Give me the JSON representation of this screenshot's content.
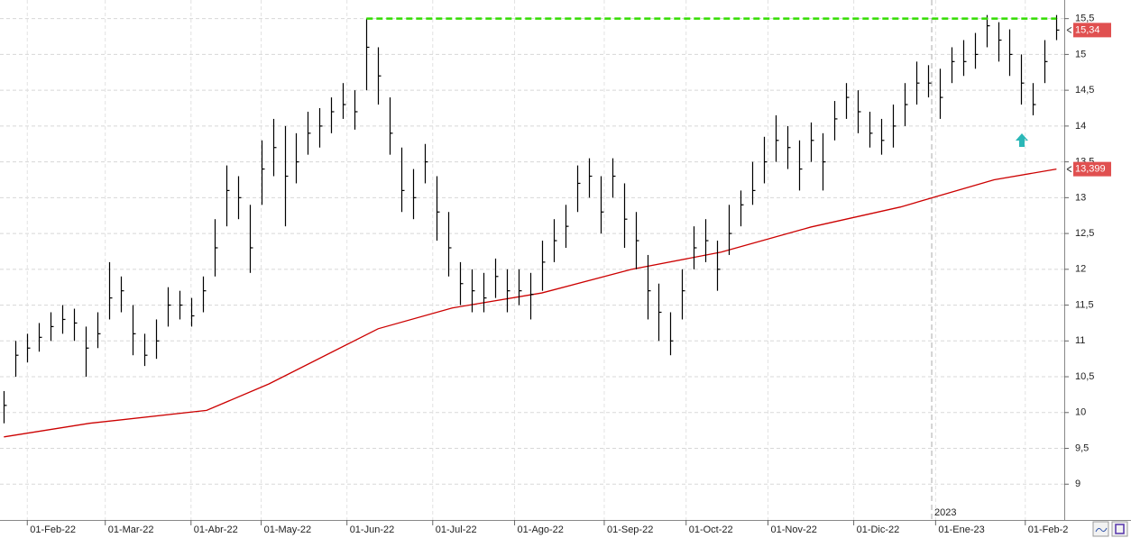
{
  "chart_data": {
    "type": "hlc",
    "xlim": [
      -1,
      272
    ],
    "ylim": [
      8.5,
      15.76
    ],
    "yticks": [
      9,
      {
        "value": 9.5,
        "label": "9,5"
      },
      10,
      {
        "value": 10.5,
        "label": "10,5"
      },
      11,
      {
        "value": 11.5,
        "label": "11,5"
      },
      12,
      {
        "value": 12.5,
        "label": "12,5"
      },
      13,
      {
        "value": 13.5,
        "label": "13,5"
      },
      14,
      {
        "value": 14.5,
        "label": "14,5"
      },
      15,
      {
        "value": 15.5,
        "label": "15,5"
      }
    ],
    "xticks": [
      {
        "value": 6,
        "label": "01-Feb-22"
      },
      {
        "value": 26,
        "label": "01-Mar-22"
      },
      {
        "value": 48,
        "label": "01-Abr-22"
      },
      {
        "value": 66,
        "label": "01-May-22"
      },
      {
        "value": 88,
        "label": "01-Jun-22"
      },
      {
        "value": 110,
        "label": "01-Jul-22"
      },
      {
        "value": 131,
        "label": "01-Ago-22"
      },
      {
        "value": 154,
        "label": "01-Sep-22"
      },
      {
        "value": 175,
        "label": "01-Oct-22"
      },
      {
        "value": 196,
        "label": "01-Nov-22"
      },
      {
        "value": 218,
        "label": "01-Dic-22"
      },
      {
        "value": 239,
        "label": "01-Ene-23"
      },
      {
        "value": 262,
        "label": "01-Feb-2"
      }
    ],
    "grid": true,
    "bar_color": "#000000",
    "bars": {
      "x": [
        0,
        3,
        6,
        9,
        12,
        15,
        18,
        21,
        24,
        27,
        30,
        33,
        36,
        39,
        42,
        45,
        48,
        51,
        54,
        57,
        60,
        63,
        66,
        69,
        72,
        75,
        78,
        81,
        84,
        87,
        90,
        93,
        96,
        99,
        102,
        105,
        108,
        111,
        114,
        117,
        120,
        123,
        126,
        129,
        132,
        135,
        138,
        141,
        144,
        147,
        150,
        153,
        156,
        159,
        162,
        165,
        168,
        171,
        174,
        177,
        180,
        183,
        186,
        189,
        192,
        195,
        198,
        201,
        204,
        207,
        210,
        213,
        216,
        219,
        222,
        225,
        228,
        231,
        234,
        237,
        240,
        243,
        246,
        249,
        252,
        255,
        258,
        261,
        264,
        267,
        270
      ],
      "high": [
        10.3,
        11.0,
        11.1,
        11.25,
        11.4,
        11.5,
        11.45,
        11.2,
        11.4,
        12.1,
        11.9,
        11.5,
        11.1,
        11.3,
        11.75,
        11.7,
        11.6,
        11.9,
        12.7,
        13.45,
        13.3,
        12.9,
        13.8,
        14.1,
        14.0,
        13.9,
        14.2,
        14.25,
        14.4,
        14.6,
        14.5,
        15.5,
        15.1,
        14.4,
        13.7,
        13.4,
        13.75,
        13.3,
        12.8,
        12.1,
        12.0,
        11.95,
        12.15,
        12.0,
        12.0,
        11.95,
        12.4,
        12.7,
        12.9,
        13.45,
        13.55,
        13.3,
        13.55,
        13.2,
        12.8,
        12.2,
        11.8,
        11.4,
        12.0,
        12.6,
        12.7,
        12.4,
        12.9,
        13.1,
        13.5,
        13.85,
        14.15,
        14.0,
        13.8,
        14.05,
        13.9,
        14.35,
        14.6,
        14.5,
        14.2,
        14.1,
        14.3,
        14.6,
        14.9,
        14.85,
        14.8,
        15.1,
        15.2,
        15.3,
        15.55,
        15.45,
        15.35,
        15.0,
        14.6,
        15.2,
        15.55
      ],
      "low": [
        9.85,
        10.5,
        10.7,
        10.85,
        11.0,
        11.1,
        11.0,
        10.5,
        10.9,
        11.3,
        11.4,
        10.8,
        10.65,
        10.75,
        11.2,
        11.3,
        11.2,
        11.4,
        11.9,
        12.6,
        12.7,
        11.95,
        12.9,
        13.3,
        12.6,
        13.2,
        13.6,
        13.7,
        13.9,
        14.1,
        13.95,
        14.5,
        14.3,
        13.6,
        12.8,
        12.7,
        13.2,
        12.4,
        11.9,
        11.5,
        11.4,
        11.4,
        11.6,
        11.4,
        11.5,
        11.3,
        11.7,
        12.1,
        12.3,
        12.8,
        13.0,
        12.5,
        13.0,
        12.3,
        12.0,
        11.3,
        11.0,
        10.8,
        11.3,
        12.0,
        12.1,
        11.7,
        12.2,
        12.6,
        12.9,
        13.2,
        13.5,
        13.4,
        13.1,
        13.5,
        13.1,
        13.8,
        14.1,
        13.9,
        13.7,
        13.6,
        13.7,
        14.0,
        14.3,
        14.4,
        14.1,
        14.6,
        14.7,
        14.8,
        15.1,
        14.9,
        14.7,
        14.3,
        14.15,
        14.6,
        15.2
      ],
      "close": [
        10.1,
        10.8,
        10.9,
        11.05,
        11.2,
        11.3,
        11.25,
        10.9,
        11.1,
        11.6,
        11.7,
        11.1,
        10.8,
        11.0,
        11.5,
        11.5,
        11.35,
        11.7,
        12.3,
        13.1,
        13.0,
        12.3,
        13.4,
        13.7,
        13.3,
        13.5,
        13.9,
        14.0,
        14.2,
        14.3,
        14.2,
        15.1,
        14.7,
        13.9,
        13.1,
        13.0,
        13.5,
        12.8,
        12.3,
        11.8,
        11.7,
        11.6,
        11.9,
        11.7,
        11.7,
        11.65,
        12.1,
        12.4,
        12.6,
        13.2,
        13.3,
        12.8,
        13.3,
        12.7,
        12.4,
        11.7,
        11.4,
        11.0,
        11.7,
        12.3,
        12.4,
        12.0,
        12.5,
        12.9,
        13.1,
        13.5,
        13.8,
        13.7,
        13.4,
        13.8,
        13.5,
        14.1,
        14.4,
        14.2,
        13.9,
        13.8,
        14.0,
        14.3,
        14.6,
        14.6,
        14.4,
        14.9,
        14.9,
        15.0,
        15.4,
        15.2,
        15.0,
        14.6,
        14.3,
        14.9,
        15.34
      ]
    },
    "moving_average": {
      "color": "#cc0000",
      "x": [
        0,
        22,
        52,
        68,
        96,
        115,
        138,
        161,
        184,
        207,
        230,
        254,
        270
      ],
      "values": [
        9.66,
        9.85,
        10.03,
        10.4,
        11.17,
        11.46,
        11.67,
        12.0,
        12.24,
        12.59,
        12.87,
        13.25,
        13.399
      ],
      "last_label": "13,399"
    },
    "last_price": {
      "value": 15.34,
      "label": "15,34",
      "color": "#e05050"
    },
    "resistance": {
      "value": 15.5,
      "x": [
        93,
        270
      ],
      "color": "#33dd00"
    },
    "year_marker": {
      "x": 238,
      "label": "2023"
    }
  }
}
